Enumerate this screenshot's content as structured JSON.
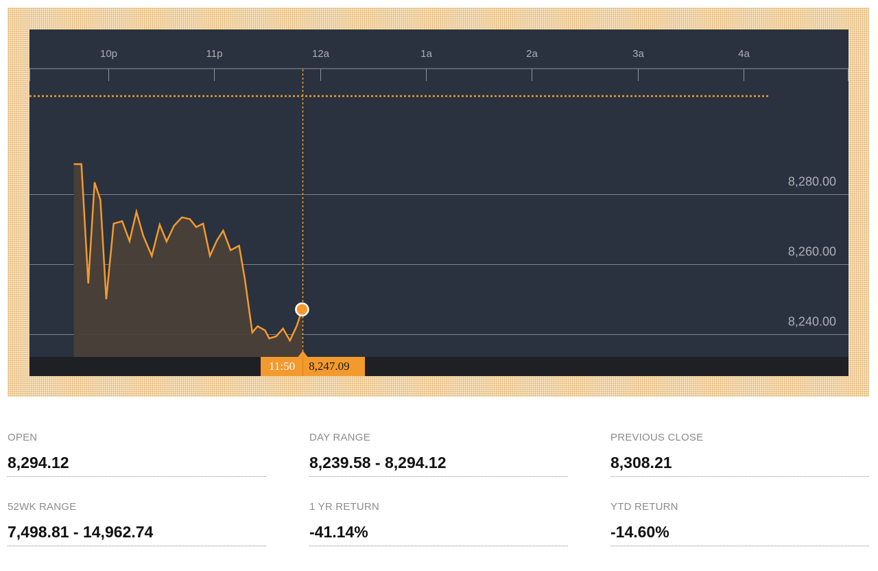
{
  "chart_data": {
    "type": "area",
    "x_tick_labels": [
      "10p",
      "11p",
      "12a",
      "1a",
      "2a",
      "3a",
      "4a"
    ],
    "x_range_hours": [
      21.6,
      28.0
    ],
    "y_tick_labels": [
      "8,280.00",
      "8,260.00",
      "8,240.00"
    ],
    "y_ticks": [
      8280,
      8260,
      8240
    ],
    "ylim": [
      8233.5,
      8294.0
    ],
    "reference_line": {
      "value": 8308.21,
      "style": "dotted"
    },
    "series": [
      {
        "x": [
          21.673,
          21.745,
          21.81,
          21.87,
          21.925,
          21.98,
          22.05,
          22.13,
          22.2,
          22.265,
          22.33,
          22.41,
          22.485,
          22.55,
          22.62,
          22.695,
          22.77,
          22.83,
          22.895,
          22.96,
          23.025,
          23.085,
          23.155,
          23.235,
          23.29,
          23.36,
          23.41,
          23.48,
          23.52,
          23.585,
          23.65,
          23.715,
          23.78,
          23.83
        ],
        "y": [
          8288.6,
          8288.6,
          8254.5,
          8283.4,
          8278.4,
          8250.0,
          8271.6,
          8272.3,
          8266.6,
          8275.0,
          8268.1,
          8262.4,
          8271.3,
          8266.5,
          8271.0,
          8273.4,
          8272.9,
          8270.6,
          8271.6,
          8262.4,
          8266.8,
          8269.6,
          8264.0,
          8265.3,
          8255.7,
          8240.5,
          8242.3,
          8241.1,
          8238.8,
          8239.4,
          8241.6,
          8238.2,
          8242.4,
          8247.09
        ]
      }
    ],
    "crosshair": {
      "x": 23.833,
      "time_label": "11:50",
      "value_label": "8,247.09"
    },
    "grid": true,
    "colors": {
      "background": "#29323e",
      "line": "#f39a2e",
      "fill": "#4a4038",
      "grid": "#8c939c",
      "axis_text": "#aab0b8"
    }
  },
  "stats": [
    {
      "label": "OPEN",
      "value": "8,294.12"
    },
    {
      "label": "DAY RANGE",
      "value": "8,239.58 - 8,294.12"
    },
    {
      "label": "PREVIOUS CLOSE",
      "value": "8,308.21"
    },
    {
      "label": "52WK RANGE",
      "value": "7,498.81 - 14,962.74"
    },
    {
      "label": "1 YR RETURN",
      "value": "-41.14%"
    },
    {
      "label": "YTD RETURN",
      "value": "-14.60%"
    }
  ]
}
